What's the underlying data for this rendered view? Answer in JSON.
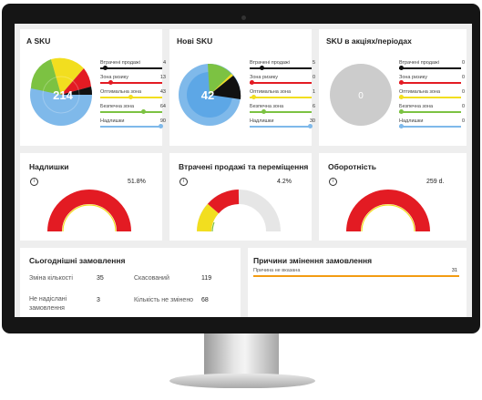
{
  "sku_cards": [
    {
      "title": "А SKU",
      "total": "214",
      "legend": [
        {
          "label": "Втрачені продажі",
          "value": "4",
          "color": "#111111",
          "fraction": 0.05
        },
        {
          "label": "Зона ризику",
          "value": "13",
          "color": "#e31b23",
          "fraction": 0.14
        },
        {
          "label": "Оптимальна зона",
          "value": "43",
          "color": "#f2de1f",
          "fraction": 0.48
        },
        {
          "label": "Безпечна зона",
          "value": "64",
          "color": "#7cc242",
          "fraction": 0.71
        },
        {
          "label": "Надлишки",
          "value": "90",
          "color": "#7fb9ea",
          "fraction": 1.0
        }
      ]
    },
    {
      "title": "Нові SKU",
      "total": "42",
      "legend": [
        {
          "label": "Втрачені продажі",
          "value": "5",
          "color": "#111111",
          "fraction": 0.17
        },
        {
          "label": "Зона ризику",
          "value": "0",
          "color": "#e31b23",
          "fraction": 0.0
        },
        {
          "label": "Оптимальна зона",
          "value": "1",
          "color": "#f2de1f",
          "fraction": 0.03
        },
        {
          "label": "Безпечна зона",
          "value": "6",
          "color": "#7cc242",
          "fraction": 0.2
        },
        {
          "label": "Надлишки",
          "value": "30",
          "color": "#7fb9ea",
          "fraction": 1.0
        }
      ]
    },
    {
      "title": "SKU в акціях/періодах",
      "total": "0",
      "legend": [
        {
          "label": "Втрачені продажі",
          "value": "0",
          "color": "#111111",
          "fraction": 0.0
        },
        {
          "label": "Зона ризику",
          "value": "0",
          "color": "#e31b23",
          "fraction": 0.0
        },
        {
          "label": "Оптимальна зона",
          "value": "0",
          "color": "#f2de1f",
          "fraction": 0.0
        },
        {
          "label": "Безпечна зона",
          "value": "0",
          "color": "#7cc242",
          "fraction": 0.0
        },
        {
          "label": "Надлишки",
          "value": "0",
          "color": "#7fb9ea",
          "fraction": 0.0
        }
      ]
    }
  ],
  "gauges": [
    {
      "title": "Надлишки",
      "value_text": "51.8%",
      "icon": "info-icon",
      "fill": 1.0
    },
    {
      "title": "Втрачені продажі та переміщення",
      "value_text": "4.2%",
      "icon": "info-icon",
      "fill": 0.45
    },
    {
      "title": "Оборотність",
      "value_text": "259 d.",
      "icon": "info-icon",
      "fill": 1.0
    }
  ],
  "orders": {
    "title": "Сьогоднішні замовлення",
    "items": [
      {
        "label": "Зміна кількості",
        "value": "35"
      },
      {
        "label": "Скасований",
        "value": "119"
      },
      {
        "label": "Не надіслані замовлення",
        "value": "3"
      },
      {
        "label": "Кількість не змінено",
        "value": "68"
      }
    ]
  },
  "reasons": {
    "title": "Причини змінення замовлення",
    "items": [
      {
        "label": "Причина не вказана",
        "value": "31",
        "color": "#f39c12",
        "fraction": 1.0
      }
    ]
  },
  "colors": {
    "black": "#111111",
    "red": "#e31b23",
    "yellow": "#f2de1f",
    "green": "#7cc242",
    "blue": "#7fb9ea",
    "grey": "#cccccc"
  }
}
